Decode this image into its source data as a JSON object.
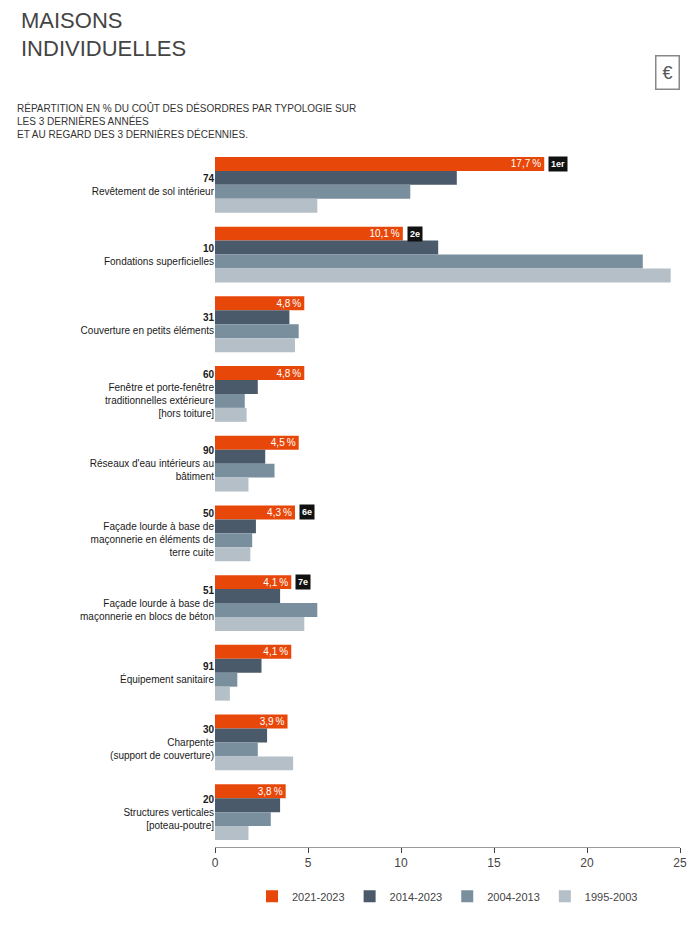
{
  "chart_data": {
    "type": "bar",
    "orientation": "horizontal",
    "title": "MAISONS\nINDIVIDUELLES",
    "subtitle": "RÉPARTITION EN % DU COÛT DES DÉSORDRES PAR TYPOLOGIE SUR\nLES 3 DERNIÈRES ANNÉES\nET AU REGARD DES 3 DERNIÈRES DÉCENNIES.",
    "categories": [
      "74\nRevêtement de sol intérieur",
      "10\nFondations superficielles",
      "31\nCouverture en petits éléments",
      "60\nFenêtre et porte-fenêtre\ntraditionnelles extérieure\n[hors toiture]",
      "90\nRéseaux d'eau intérieurs au\nbâtiment",
      "50\nFaçade lourde à base de\nmaçonnerie en éléments de\nterre cuite",
      "51\nFaçade lourde à base de\nmaçonnerie en blocs de béton",
      "91\nÉquipement sanitaire",
      "30\nCharpente\n(support de couverture)",
      "20\nStructures verticales\n[poteau-poutre]"
    ],
    "series": [
      {
        "name": "2021-2023",
        "color": "#E8470A",
        "values": [
          17.7,
          10.1,
          4.8,
          4.8,
          4.5,
          4.3,
          4.1,
          4.1,
          3.9,
          3.8
        ],
        "data_labels": true,
        "value_labels": [
          "17,7 %",
          "10,1 %",
          "4,8 %",
          "4,8 %",
          "4,5 %",
          "4,3 %",
          "4,1 %",
          "4,1 %",
          "3,9 %",
          "3,8 %"
        ]
      },
      {
        "name": "2014-2023",
        "color": "#4a5a6a",
        "values": [
          13.0,
          12.0,
          4.0,
          2.3,
          2.7,
          2.2,
          3.5,
          2.5,
          2.8,
          3.5
        ]
      },
      {
        "name": "2004-2013",
        "color": "#7a8f9e",
        "values": [
          10.5,
          23.0,
          4.5,
          1.6,
          3.2,
          2.0,
          5.5,
          1.2,
          2.3,
          3.0
        ]
      },
      {
        "name": "1995-2003",
        "color": "#b5bfc8",
        "values": [
          5.5,
          24.5,
          4.3,
          1.7,
          1.8,
          1.9,
          4.8,
          0.8,
          4.2,
          1.8
        ]
      }
    ],
    "annotations": [
      {
        "text": "1er",
        "category": "74\nRevêtement de sol intérieur",
        "series": "2021-2023"
      },
      {
        "text": "2e",
        "category": "10\nFondations superficielles",
        "series": "2021-2023"
      },
      {
        "text": "6e",
        "category": "50\nFaçade lourde à base de\nmaçonnerie en éléments de\nterre cuite",
        "series": "2021-2023"
      },
      {
        "text": "7e",
        "category": "51\nFaçade lourde à base de\nmaçonnerie en blocs de béton",
        "series": "2021-2023"
      },
      {
        "text": "€"
      }
    ],
    "xlim": [
      0,
      25
    ],
    "xticks": [
      0,
      5,
      10,
      15,
      20,
      25
    ],
    "grid": false,
    "legend": "bottom"
  }
}
